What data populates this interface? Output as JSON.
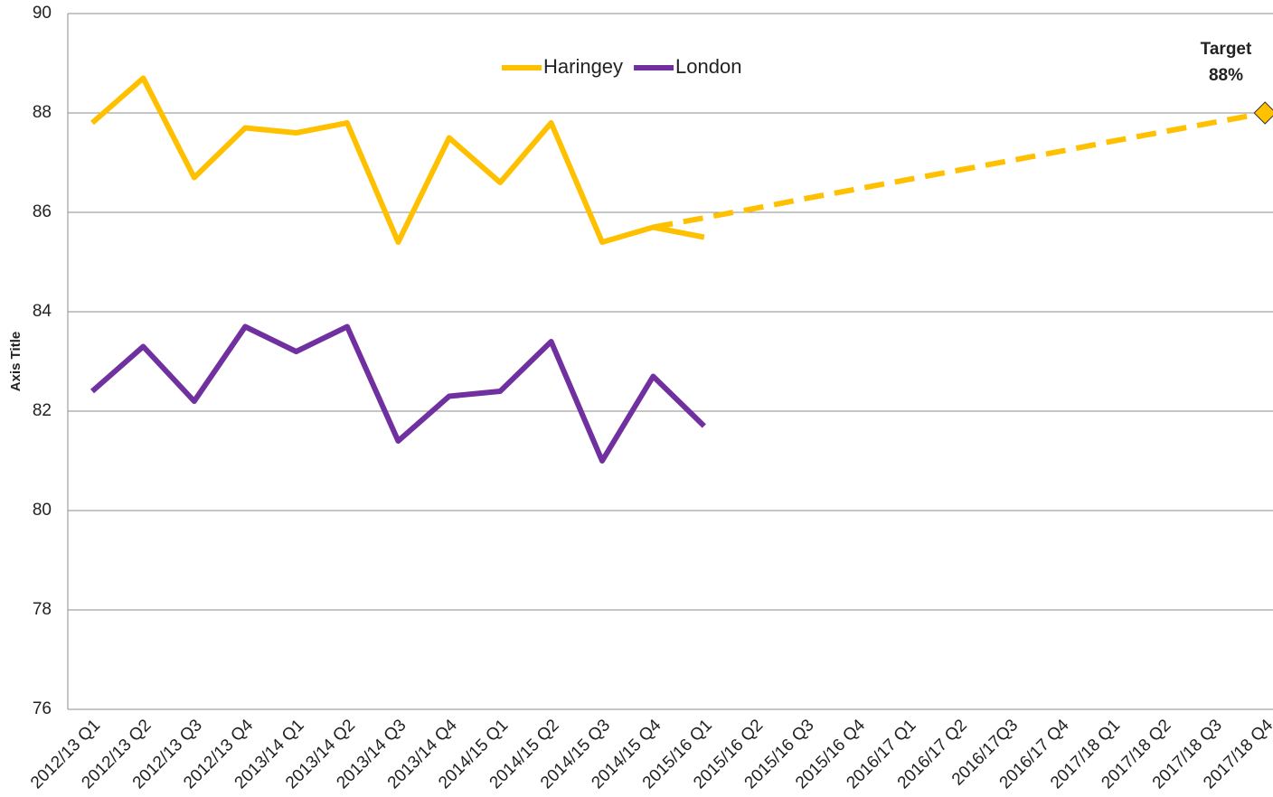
{
  "chart_data": {
    "type": "line",
    "y_axis_label": "Axis Title",
    "categories": [
      "2012/13 Q1",
      "2012/13 Q2",
      "2012/13 Q3",
      "2012/13 Q4",
      "2013/14 Q1",
      "2013/14 Q2",
      "2013/14 Q3",
      "2013/14 Q4",
      "2014/15 Q1",
      "2014/15 Q2",
      "2014/15 Q3",
      "2014/15 Q4",
      "2015/16 Q1",
      "2015/16 Q2",
      "2015/16 Q3",
      "2015/16 Q4",
      "2016/17 Q1",
      "2016/17 Q2",
      "2016/17Q3",
      "2016/17 Q4",
      "2017/18 Q1",
      "2017/18 Q2",
      "2017/18 Q3",
      "2017/18 Q4"
    ],
    "series": [
      {
        "name": "Haringey",
        "color": "#ffc000",
        "values": [
          87.8,
          88.7,
          86.7,
          87.7,
          87.6,
          87.8,
          85.4,
          87.5,
          86.6,
          87.8,
          85.4,
          85.7,
          85.5,
          null,
          null,
          null,
          null,
          null,
          null,
          null,
          null,
          null,
          null,
          null
        ]
      },
      {
        "name": "London",
        "color": "#7030a0",
        "values": [
          82.4,
          83.3,
          82.2,
          83.7,
          83.2,
          83.7,
          81.4,
          82.3,
          82.4,
          83.4,
          81.0,
          82.7,
          81.7,
          null,
          null,
          null,
          null,
          null,
          null,
          null,
          null,
          null,
          null,
          null
        ]
      },
      {
        "color": "#ffc000",
        "dashed": true,
        "end_marker": "diamond",
        "values": [
          null,
          null,
          null,
          null,
          null,
          null,
          null,
          null,
          null,
          null,
          null,
          85.7,
          85.89,
          86.08,
          86.28,
          86.47,
          86.66,
          86.85,
          87.04,
          87.23,
          87.43,
          87.62,
          87.81,
          88
        ]
      }
    ],
    "annotation": [
      "Target",
      "88%"
    ],
    "ylim": [
      76,
      90
    ],
    "yticks": [
      76,
      78,
      80,
      82,
      84,
      86,
      88,
      90
    ],
    "grid": true,
    "legend": "top"
  }
}
